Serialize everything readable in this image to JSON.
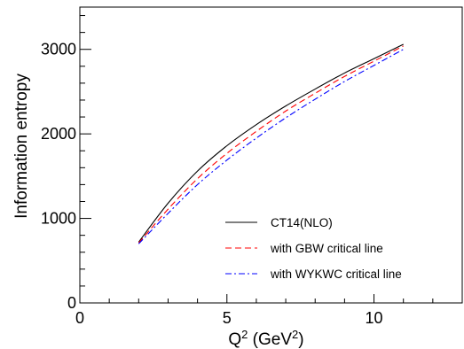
{
  "chart_data": {
    "type": "line",
    "title": "",
    "xlabel": {
      "base": "Q",
      "sup1": "2",
      "mid": " (GeV",
      "sup2": "2",
      "end": ")"
    },
    "ylabel": "Information entropy",
    "xlim": [
      0,
      13
    ],
    "ylim": [
      0,
      3500
    ],
    "x_major_ticks": [
      0,
      5,
      10
    ],
    "x_tick_labels": [
      "0",
      "5",
      "10"
    ],
    "y_major_ticks": [
      0,
      1000,
      2000,
      3000
    ],
    "y_tick_labels": [
      "0",
      "1000",
      "2000",
      "3000"
    ],
    "x_minor_step": 1,
    "y_minor_step": 200,
    "grid": false,
    "legend_position": "bottom-right",
    "series": [
      {
        "name": "CT14(NLO)",
        "color": "#000000",
        "style": "solid",
        "x": [
          2,
          3,
          4,
          5,
          6,
          7,
          8,
          9,
          10,
          11
        ],
        "y": [
          720,
          1180,
          1560,
          1860,
          2110,
          2330,
          2530,
          2720,
          2890,
          3060
        ]
      },
      {
        "name": "with GBW critical line",
        "color": "#ff0000",
        "style": "dashed",
        "x": [
          2,
          3,
          4,
          5,
          6,
          7,
          8,
          9,
          10,
          11
        ],
        "y": [
          710,
          1110,
          1470,
          1770,
          2030,
          2270,
          2480,
          2680,
          2860,
          3040
        ]
      },
      {
        "name": "with WYKWC critical line",
        "color": "#0000ff",
        "style": "dashdot",
        "x": [
          2,
          3,
          4,
          5,
          6,
          7,
          8,
          9,
          10,
          11
        ],
        "y": [
          700,
          1060,
          1400,
          1690,
          1950,
          2190,
          2410,
          2620,
          2810,
          3000
        ]
      }
    ]
  }
}
